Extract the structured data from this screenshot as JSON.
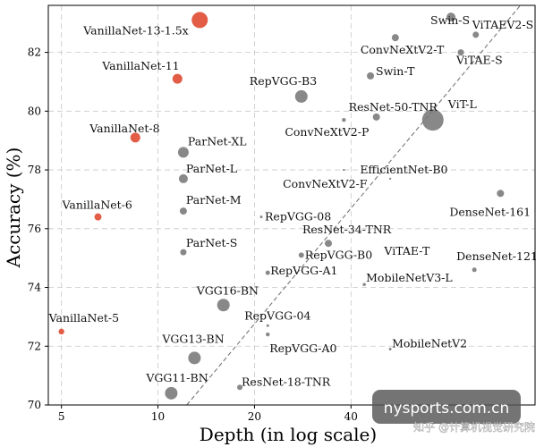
{
  "chart_data": {
    "type": "scatter",
    "xlabel": "Depth (in log scale)",
    "ylabel": "Accuracy (%)",
    "x_scale": "log",
    "xlim": [
      4.55,
      150
    ],
    "ylim": [
      70,
      83.6
    ],
    "x_ticks": [
      5,
      10,
      20,
      40
    ],
    "x_tick_labels": [
      "5",
      "10",
      "20",
      "40"
    ],
    "y_ticks": [
      70,
      72,
      74,
      76,
      78,
      80,
      82
    ],
    "y_tick_labels": [
      "70",
      "72",
      "74",
      "76",
      "78",
      "80",
      "82"
    ],
    "grid": true,
    "colors": {
      "vanillanet": "#e0533c",
      "other": "#777777",
      "trend": "#777777"
    },
    "trend_line": {
      "x": [
        12.3,
        135
      ],
      "y": [
        70,
        83.6
      ]
    },
    "points": [
      {
        "name": "VanillaNet-13-1.5x",
        "x": 13.5,
        "y": 83.1,
        "size": 9,
        "group": "vanillanet"
      },
      {
        "name": "VanillaNet-11",
        "x": 11.5,
        "y": 81.1,
        "size": 5.5,
        "group": "vanillanet"
      },
      {
        "name": "VanillaNet-8",
        "x": 8.5,
        "y": 79.1,
        "size": 5.5,
        "group": "vanillanet"
      },
      {
        "name": "VanillaNet-6",
        "x": 6.5,
        "y": 76.4,
        "size": 4,
        "group": "vanillanet"
      },
      {
        "name": "VanillaNet-5",
        "x": 5,
        "y": 72.5,
        "size": 3.2,
        "group": "vanillanet"
      },
      {
        "name": "Swin-S",
        "x": 82,
        "y": 83.2,
        "size": 5,
        "group": "other"
      },
      {
        "name": "ViTAEV2-S",
        "x": 98,
        "y": 82.6,
        "size": 3.5,
        "group": "other"
      },
      {
        "name": "ConvNeXtV2-T",
        "x": 55,
        "y": 82.5,
        "size": 4,
        "group": "other"
      },
      {
        "name": "ViTAE-S",
        "x": 88,
        "y": 82,
        "size": 3.5,
        "group": "other"
      },
      {
        "name": "Swin-T",
        "x": 46,
        "y": 81.2,
        "size": 4,
        "group": "other"
      },
      {
        "name": "RepVGG-B3",
        "x": 28,
        "y": 80.5,
        "size": 7,
        "group": "other"
      },
      {
        "name": "ResNet-50-TNR",
        "x": 48,
        "y": 79.8,
        "size": 4,
        "group": "other"
      },
      {
        "name": "ViT-L",
        "x": 72,
        "y": 79.7,
        "size": 12,
        "group": "other"
      },
      {
        "name": "ConvNeXtV2-P",
        "x": 38,
        "y": 79.7,
        "size": 2.2,
        "group": "other"
      },
      {
        "name": "ParNet-XL",
        "x": 12,
        "y": 78.6,
        "size": 6,
        "group": "other"
      },
      {
        "name": "EfficientNet-B0",
        "x": 38,
        "y": 78,
        "size": 1.2,
        "group": "other"
      },
      {
        "name": "ParNet-L",
        "x": 12,
        "y": 77.7,
        "size": 5,
        "group": "other"
      },
      {
        "name": "ConvNeXtV2-F",
        "x": 53,
        "y": 77.7,
        "size": 1.2,
        "group": "other"
      },
      {
        "name": "DenseNet-161",
        "x": 117,
        "y": 77.2,
        "size": 4,
        "group": "other"
      },
      {
        "name": "ParNet-M",
        "x": 12,
        "y": 76.6,
        "size": 4,
        "group": "other"
      },
      {
        "name": "RepVGG-08",
        "x": 21,
        "y": 76.4,
        "size": 1.5,
        "group": "other"
      },
      {
        "name": "ResNet-34-TNR",
        "x": 34,
        "y": 75.5,
        "size": 4,
        "group": "other"
      },
      {
        "name": "ParNet-S",
        "x": 12,
        "y": 75.2,
        "size": 3.5,
        "group": "other"
      },
      {
        "name": "RepVGG-B0",
        "x": 28,
        "y": 75.1,
        "size": 3,
        "group": "other"
      },
      {
        "name": "ViTAE-T",
        "x": 60,
        "y": 75.3,
        "size": 1.2,
        "group": "other"
      },
      {
        "name": "DenseNet-121",
        "x": 97,
        "y": 74.6,
        "size": 2.5,
        "group": "other"
      },
      {
        "name": "RepVGG-A1",
        "x": 22,
        "y": 74.5,
        "size": 2.5,
        "group": "other"
      },
      {
        "name": "MobileNetV3-L",
        "x": 44,
        "y": 74.1,
        "size": 1.8,
        "group": "other"
      },
      {
        "name": "VGG16-BN",
        "x": 16,
        "y": 73.4,
        "size": 7,
        "group": "other"
      },
      {
        "name": "RepVGG-04",
        "x": 22,
        "y": 72.7,
        "size": 1.5,
        "group": "other"
      },
      {
        "name": "RepVGG-A0",
        "x": 22,
        "y": 72.4,
        "size": 2.2,
        "group": "other"
      },
      {
        "name": "MobileNetV2",
        "x": 53,
        "y": 71.9,
        "size": 1.5,
        "group": "other"
      },
      {
        "name": "VGG13-BN",
        "x": 13,
        "y": 71.6,
        "size": 7,
        "group": "other"
      },
      {
        "name": "ResNet-18-TNR",
        "x": 18,
        "y": 70.6,
        "size": 3,
        "group": "other"
      },
      {
        "name": "VGG11-BN",
        "x": 11,
        "y": 70.4,
        "size": 7,
        "group": "other"
      }
    ]
  },
  "watermarks": {
    "site": "nysports.com.cn",
    "chinese": "知乎 @计算机视觉研究院"
  }
}
